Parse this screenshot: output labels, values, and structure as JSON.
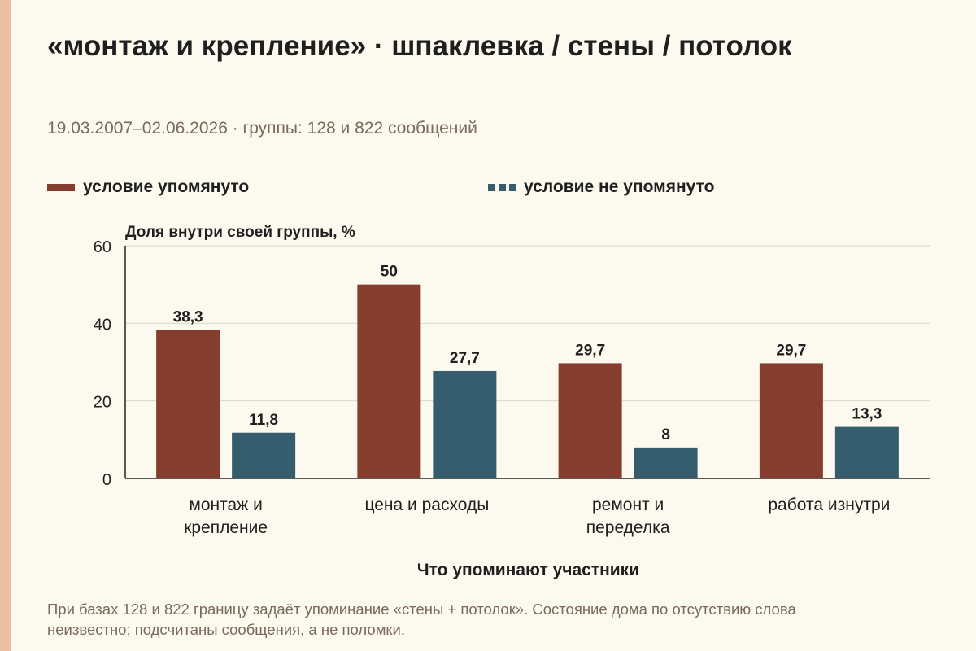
{
  "header": {
    "title": "«монтаж и крепление» · шпаклевка / стены / потолок",
    "subtitle": "19.03.2007–02.06.2026 · группы: 128 и 822 сообщений"
  },
  "colors": {
    "mentioned": "#853d2e",
    "not_mentioned": "#365d6d",
    "accent_bar": "#eebfa5",
    "grid": "#dcd7cc"
  },
  "chart_data": {
    "type": "bar",
    "title": "«монтаж и крепление» · шпаклевка / стены / потолок",
    "ylabel": "Доля внутри своей группы, %",
    "xlabel": "Что упоминают участники",
    "ylim": [
      0,
      60
    ],
    "yticks": [
      0,
      20,
      40,
      60
    ],
    "grid": true,
    "legend_position": "top",
    "categories": [
      [
        "монтаж и",
        "крепление"
      ],
      [
        "цена и расходы"
      ],
      [
        "ремонт и",
        "переделка"
      ],
      [
        "работа изнутри"
      ]
    ],
    "series": [
      {
        "name": "условие упомянуто",
        "values": [
          38.3,
          50,
          29.7,
          29.7
        ],
        "labels": [
          "38,3",
          "50",
          "29,7",
          "29,7"
        ]
      },
      {
        "name": "условие не упомянуто",
        "values": [
          11.8,
          27.7,
          8,
          13.3
        ],
        "labels": [
          "11,8",
          "27,7",
          "8",
          "13,3"
        ]
      }
    ]
  },
  "footnote": "При базах 128 и 822 границу задаёт упоминание «стены + потолок». Состояние дома по отсутствию слова неизвестно; подсчитаны сообщения, а не поломки."
}
